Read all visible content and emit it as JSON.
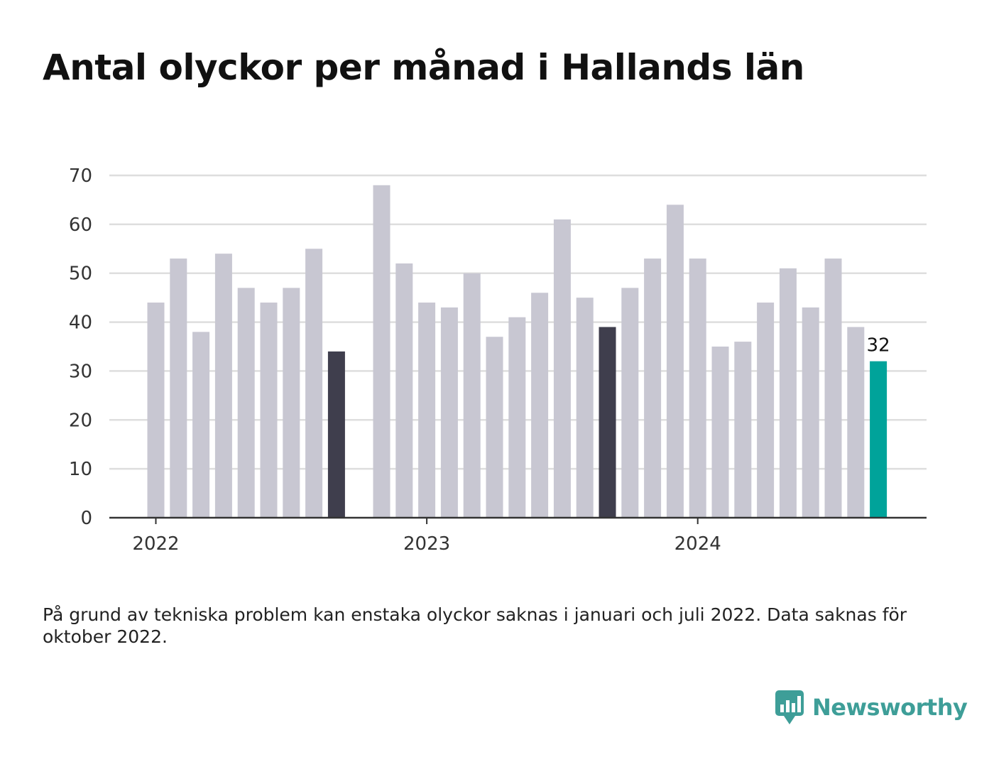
{
  "title": "Antal olyckor per månad i Hallands län",
  "footnote": "På grund av tekniska problem kan enstaka olyckor saknas i januari och juli 2022. Data saknas för oktober 2022.",
  "brand": {
    "name": "Newsworthy"
  },
  "colors": {
    "bar_default": "#c8c7d2",
    "bar_dark": "#3f3e4d",
    "bar_highlight": "#00a39a",
    "gridline": "#dedede",
    "axis": "#333333",
    "brand": "#3e9e98"
  },
  "chart_data": {
    "type": "bar",
    "xlabel": "",
    "ylabel": "",
    "ylim": [
      0,
      70
    ],
    "yticks": [
      0,
      10,
      20,
      30,
      40,
      50,
      60,
      70
    ],
    "grid": true,
    "xticks": [
      {
        "label": "2022",
        "index": 0
      },
      {
        "label": "2023",
        "index": 12
      },
      {
        "label": "2024",
        "index": 24
      }
    ],
    "categories": [
      "2022-01",
      "2022-02",
      "2022-03",
      "2022-04",
      "2022-05",
      "2022-06",
      "2022-07",
      "2022-08",
      "2022-09",
      "2022-10",
      "2022-11",
      "2022-12",
      "2023-01",
      "2023-02",
      "2023-03",
      "2023-04",
      "2023-05",
      "2023-06",
      "2023-07",
      "2023-08",
      "2023-09",
      "2023-10",
      "2023-11",
      "2023-12",
      "2024-01",
      "2024-02",
      "2024-03",
      "2024-04",
      "2024-05",
      "2024-06",
      "2024-07",
      "2024-08",
      "2024-09",
      "2024-10"
    ],
    "values": [
      44,
      53,
      38,
      54,
      47,
      44,
      47,
      55,
      34,
      null,
      68,
      52,
      44,
      43,
      50,
      37,
      41,
      46,
      61,
      45,
      39,
      47,
      53,
      64,
      53,
      35,
      36,
      44,
      51,
      43,
      53,
      39,
      32,
      null
    ],
    "dark_bars": [
      "2022-09",
      "2023-09"
    ],
    "highlight_bar": "2024-09",
    "data_labels": [
      {
        "category": "2024-09",
        "text": "32"
      }
    ]
  }
}
